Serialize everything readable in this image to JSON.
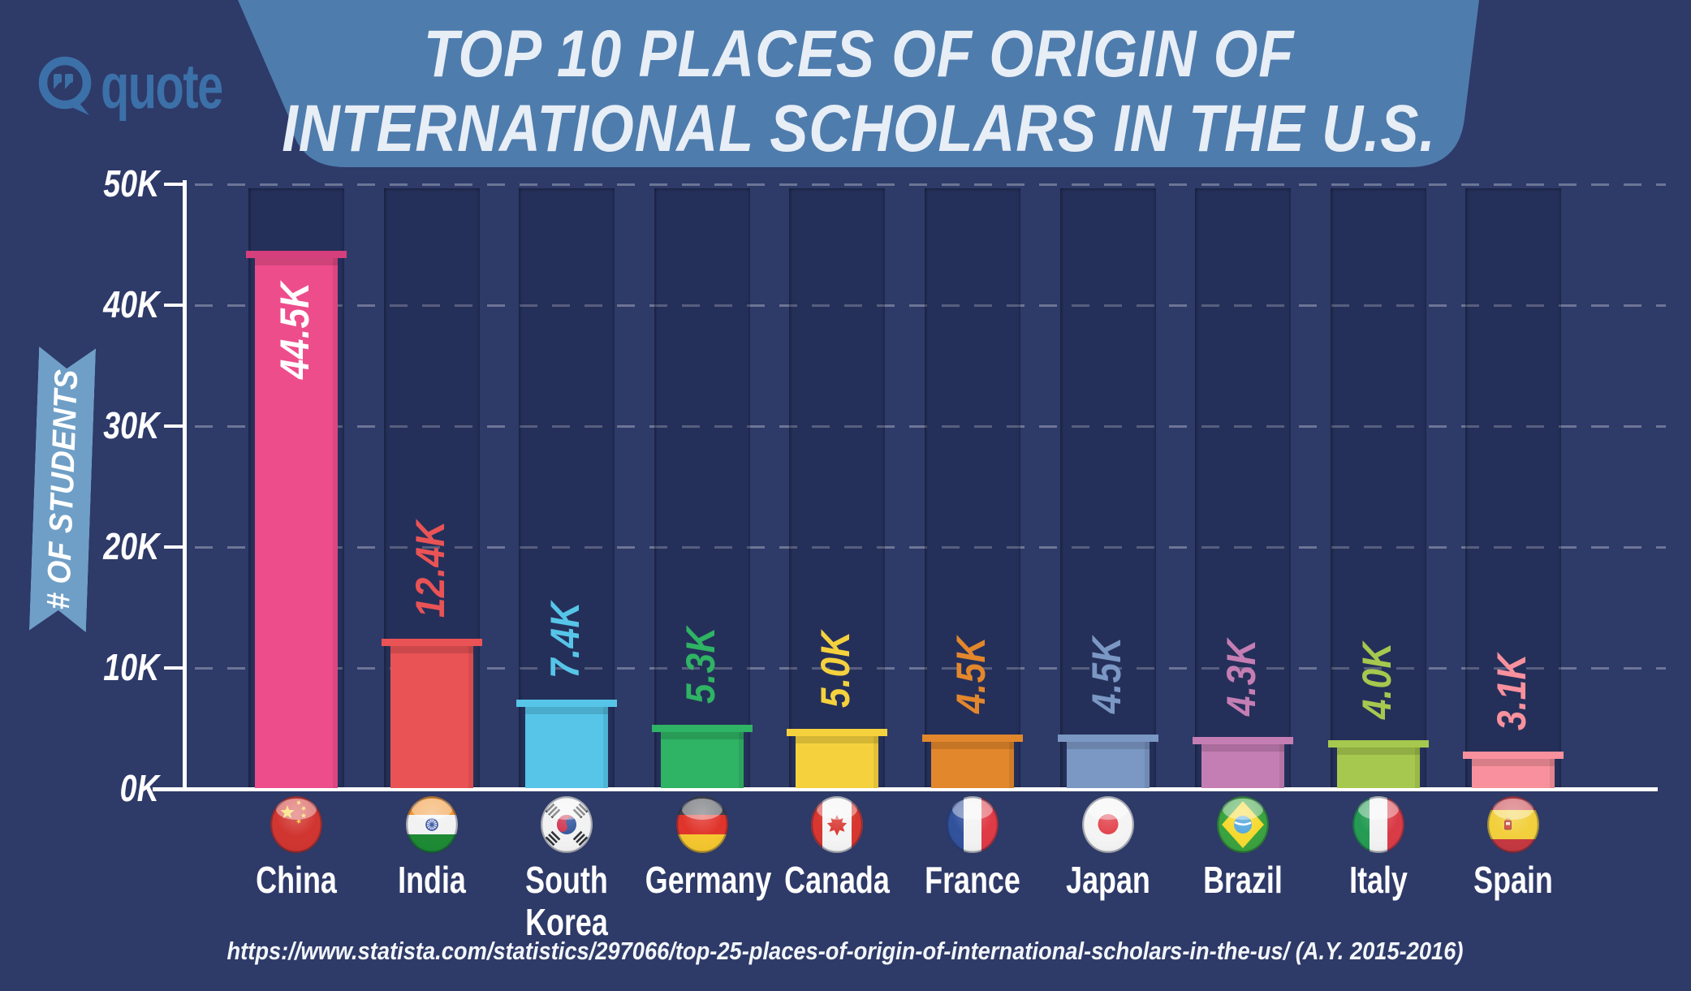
{
  "header": {
    "logo_text": "quote",
    "title_line1": "TOP 10 PLACES OF ORIGIN OF",
    "title_line2": "INTERNATIONAL SCHOLARS IN THE U.S."
  },
  "y_axis": {
    "label": "# OF STUDENTS",
    "ticks": [
      "50K",
      "40K",
      "30K",
      "20K",
      "10K",
      "0K"
    ]
  },
  "footer": {
    "source": "https://www.statista.com/statistics/297066/top-25-places-of-origin-of-international-scholars-in-the-us/ (A.Y. 2015-2016)"
  },
  "colors": {
    "background": "#2e3a68",
    "banner": "#4e7cad",
    "ribbon": "#6f9fc7",
    "logo": "#3c70a8",
    "title_text": "#e8eef6",
    "axis": "#ffffff",
    "gridline": "rgba(255,255,255,0.30)"
  },
  "chart_data": {
    "type": "bar",
    "title": "TOP 10 PLACES OF ORIGIN OF INTERNATIONAL SCHOLARS IN THE U.S.",
    "xlabel": "",
    "ylabel": "# OF STUDENTS",
    "ylim": [
      0,
      50000
    ],
    "yticks": [
      0,
      10000,
      20000,
      30000,
      40000,
      50000
    ],
    "ytick_labels": [
      "0K",
      "10K",
      "20K",
      "30K",
      "40K",
      "50K"
    ],
    "grid": "horizontal-dashed",
    "legend": false,
    "categories": [
      "China",
      "India",
      "South Korea",
      "Germany",
      "Canada",
      "France",
      "Japan",
      "Brazil",
      "Italy",
      "Spain"
    ],
    "values": [
      44500,
      12400,
      7400,
      5300,
      5000,
      4500,
      4500,
      4300,
      4000,
      3100
    ],
    "value_labels": [
      "44.5K",
      "12.4K",
      "7.4K",
      "5.3K",
      "5.0K",
      "4.5K",
      "4.5K",
      "4.3K",
      "4.0K",
      "3.1K"
    ],
    "bars": [
      {
        "name": "China",
        "lines": [
          "China"
        ],
        "value": 44500,
        "value_label": "44.5K",
        "color": "#ee4d8c",
        "cap_color": "#d43f7c",
        "label_color": "#ffffff",
        "label_inside": true,
        "flag": "china-flag-icon"
      },
      {
        "name": "India",
        "lines": [
          "India"
        ],
        "value": 12400,
        "value_label": "12.4K",
        "color": "#ea5355",
        "cap_color": "#ea5355",
        "label_color": "#ea5355",
        "label_inside": false,
        "flag": "india-flag-icon"
      },
      {
        "name": "South Korea",
        "lines": [
          "South",
          "Korea"
        ],
        "value": 7400,
        "value_label": "7.4K",
        "color": "#56c5e8",
        "cap_color": "#56c5e8",
        "label_color": "#56c5e8",
        "label_inside": false,
        "flag": "south-korea-flag-icon"
      },
      {
        "name": "Germany",
        "lines": [
          "Germany"
        ],
        "value": 5300,
        "value_label": "5.3K",
        "color": "#2fb364",
        "cap_color": "#2fb364",
        "label_color": "#2fb364",
        "label_inside": false,
        "flag": "germany-flag-icon"
      },
      {
        "name": "Canada",
        "lines": [
          "Canada"
        ],
        "value": 5000,
        "value_label": "5.0K",
        "color": "#f5d23d",
        "cap_color": "#f5d23d",
        "label_color": "#f5d23d",
        "label_inside": false,
        "flag": "canada-flag-icon"
      },
      {
        "name": "France",
        "lines": [
          "France"
        ],
        "value": 4500,
        "value_label": "4.5K",
        "color": "#e3872c",
        "cap_color": "#e3872c",
        "label_color": "#e3872c",
        "label_inside": false,
        "flag": "france-flag-icon"
      },
      {
        "name": "Japan",
        "lines": [
          "Japan"
        ],
        "value": 4500,
        "value_label": "4.5K",
        "color": "#7b97c4",
        "cap_color": "#7b97c4",
        "label_color": "#7b97c4",
        "label_inside": false,
        "flag": "japan-flag-icon"
      },
      {
        "name": "Brazil",
        "lines": [
          "Brazil"
        ],
        "value": 4300,
        "value_label": "4.3K",
        "color": "#c47eb3",
        "cap_color": "#c47eb3",
        "label_color": "#c47eb3",
        "label_inside": false,
        "flag": "brazil-flag-icon"
      },
      {
        "name": "Italy",
        "lines": [
          "Italy"
        ],
        "value": 4000,
        "value_label": "4.0K",
        "color": "#a6c84e",
        "cap_color": "#a6c84e",
        "label_color": "#a6c84e",
        "label_inside": false,
        "flag": "italy-flag-icon"
      },
      {
        "name": "Spain",
        "lines": [
          "Spain"
        ],
        "value": 3100,
        "value_label": "3.1K",
        "color": "#f8919d",
        "cap_color": "#f8919d",
        "label_color": "#f8919d",
        "label_inside": false,
        "flag": "spain-flag-icon"
      }
    ]
  }
}
